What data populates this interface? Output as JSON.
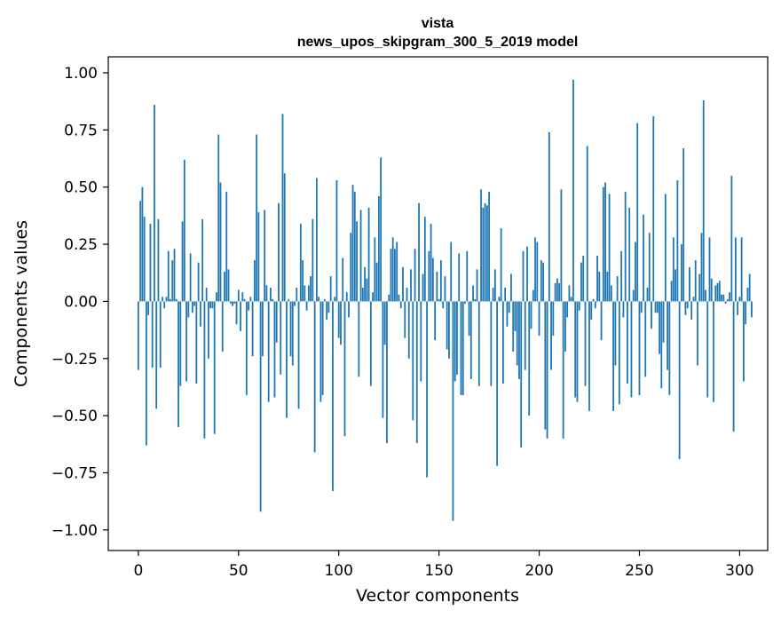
{
  "chart_data": {
    "type": "bar",
    "title": "vista",
    "subtitle": "news_upos_skipgram_300_5_2019 model",
    "xlabel": "Vector components",
    "ylabel": "Components values",
    "xlim": [
      -15,
      314
    ],
    "ylim": [
      -1.09,
      1.07
    ],
    "xticks": [
      0,
      50,
      100,
      150,
      200,
      250,
      300
    ],
    "yticks": [
      1.0,
      0.75,
      0.5,
      0.25,
      0.0,
      -0.25,
      -0.5,
      -0.75,
      -1.0
    ],
    "xtick_labels": [
      "0",
      "50",
      "100",
      "150",
      "200",
      "250",
      "300"
    ],
    "ytick_labels": [
      "1.00",
      "0.75",
      "0.50",
      "0.25",
      "0.00",
      "−0.25",
      "−0.50",
      "−0.75",
      "−1.00"
    ],
    "grid": false,
    "bar_color": "#1f77b4",
    "values": [
      -0.3,
      0.44,
      0.5,
      0.37,
      -0.63,
      -0.06,
      0.34,
      -0.29,
      0.86,
      -0.47,
      0.36,
      -0.29,
      0.02,
      -0.03,
      0.02,
      0.22,
      0.01,
      0.18,
      0.23,
      0.01,
      -0.55,
      -0.37,
      0.35,
      0.62,
      -0.35,
      -0.07,
      0.21,
      -0.05,
      -0.02,
      -0.36,
      0.17,
      -0.11,
      0.36,
      -0.6,
      0.06,
      -0.25,
      -0.03,
      -0.03,
      -0.58,
      0.04,
      0.73,
      0.52,
      -0.22,
      0.13,
      0.48,
      0.14,
      -0.01,
      -0.02,
      -0.01,
      -0.1,
      0.05,
      -0.13,
      0.04,
      0.01,
      -0.41,
      -0.04,
      0.02,
      -0.24,
      0.18,
      0.73,
      0.39,
      -0.92,
      -0.24,
      0.4,
      0.07,
      -0.44,
      0.06,
      0.01,
      -0.42,
      -0.18,
      0.43,
      -0.32,
      0.82,
      0.56,
      -0.51,
      0.01,
      -0.24,
      -0.28,
      -0.02,
      0.06,
      -0.47,
      0.34,
      0.18,
      0.07,
      -0.04,
      0.07,
      0.11,
      0.36,
      -0.66,
      0.54,
      0.02,
      -0.44,
      -0.41,
      0.01,
      -0.08,
      -0.05,
      0.11,
      -0.83,
      0.02,
      0.53,
      -0.16,
      -0.19,
      0.19,
      -0.59,
      0.04,
      -0.07,
      0.3,
      0.51,
      0.48,
      0.35,
      -0.33,
      0.4,
      0.06,
      0.15,
      0.1,
      0.41,
      -0.37,
      0.04,
      0.28,
      0.17,
      0.46,
      0.63,
      -0.51,
      -0.19,
      -0.62,
      0.03,
      0.23,
      0.28,
      0.23,
      0.26,
      0.03,
      -0.03,
      0.15,
      -0.16,
      0.06,
      -0.25,
      0.14,
      -0.52,
      0.23,
      -0.62,
      0.43,
      -0.35,
      0.12,
      0.37,
      -0.77,
      0.22,
      0.34,
      0.19,
      -0.17,
      0.13,
      0.01,
      0.18,
      -0.03,
      0.11,
      -0.21,
      -0.25,
      0.26,
      -0.96,
      -0.35,
      -0.32,
      0.21,
      -0.41,
      -0.41,
      -0.01,
      0.22,
      -0.15,
      -0.34,
      0.07,
      0.01,
      0.14,
      -0.37,
      0.49,
      0.41,
      0.43,
      0.42,
      0.48,
      -0.37,
      0.06,
      0.14,
      -0.72,
      0.02,
      0.32,
      -0.36,
      0.06,
      -0.11,
      -0.05,
      0.12,
      -0.22,
      -0.13,
      -0.28,
      -0.34,
      -0.64,
      0.22,
      -0.3,
      0.24,
      -0.5,
      -0.12,
      0.05,
      0.28,
      0.26,
      -0.15,
      0.18,
      0.17,
      -0.56,
      -0.6,
      0.74,
      -0.3,
      -0.15,
      0.08,
      0.1,
      0.08,
      0.49,
      -0.6,
      -0.22,
      -0.07,
      0.07,
      0.02,
      0.97,
      -0.42,
      -0.44,
      -0.04,
      0.17,
      0.2,
      -0.37,
      0.68,
      -0.48,
      -0.08,
      0.01,
      -0.03,
      0.2,
      0.13,
      -0.17,
      0.5,
      0.52,
      0.13,
      0.47,
      0.07,
      -0.48,
      -0.28,
      0.11,
      -0.45,
      0.22,
      -0.07,
      0.48,
      -0.36,
      0.41,
      -0.42,
      0.05,
      0.26,
      0.78,
      -0.41,
      -0.05,
      0.38,
      -0.33,
      0.06,
      0.3,
      -0.12,
      0.81,
      -0.05,
      -0.05,
      -0.23,
      -0.38,
      -0.18,
      0.47,
      -0.3,
      -0.41,
      0.09,
      0.28,
      0.14,
      0.53,
      -0.69,
      0.25,
      0.67,
      -0.06,
      -0.03,
      0.15,
      -0.08,
      0.02,
      0.18,
      -0.28,
      0.12,
      0.3,
      0.88,
      0.05,
      -0.42,
      0.28,
      0.1,
      -0.44,
      0.07,
      0.08,
      0.09,
      0.03,
      0.03,
      -0.01,
      0.01,
      0.04,
      0.55,
      -0.57,
      0.28,
      -0.06,
      0.02,
      0.28,
      -0.35,
      -0.1,
      0.06,
      0.12,
      -0.07
    ]
  }
}
